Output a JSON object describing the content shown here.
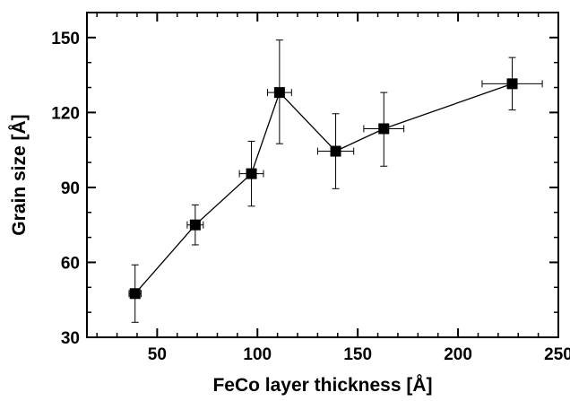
{
  "chart_data": {
    "type": "scatter",
    "xlabel": "FeCo layer thickness [Å]",
    "ylabel": "Grain size [Å]",
    "xlim": [
      15,
      250
    ],
    "ylim": [
      30,
      160
    ],
    "xticks": [
      50,
      100,
      150,
      200,
      250
    ],
    "yticks": [
      30,
      60,
      90,
      120,
      150
    ],
    "x_minor_step": 10,
    "y_minor_step": 10,
    "grid": false,
    "connected": true,
    "marker": "square",
    "colors": {
      "line": "#000000",
      "marker": "#000000"
    },
    "series": [
      {
        "points": [
          {
            "x": 39,
            "y": 47.5,
            "xerr": 3,
            "yerr_low": 11.5,
            "yerr_high": 11.5
          },
          {
            "x": 69,
            "y": 75,
            "xerr": 4,
            "yerr_low": 8,
            "yerr_high": 8
          },
          {
            "x": 97,
            "y": 95.5,
            "xerr": 6,
            "yerr_low": 13,
            "yerr_high": 13
          },
          {
            "x": 111,
            "y": 128,
            "xerr": 6,
            "yerr_low": 20.5,
            "yerr_high": 21
          },
          {
            "x": 139,
            "y": 104.5,
            "xerr": 9,
            "yerr_low": 15,
            "yerr_high": 15
          },
          {
            "x": 163,
            "y": 113.5,
            "xerr": 10,
            "yerr_low": 15,
            "yerr_high": 14.5
          },
          {
            "x": 227,
            "y": 131.5,
            "xerr": 15,
            "yerr_low": 10.5,
            "yerr_high": 10.5
          }
        ]
      }
    ]
  }
}
